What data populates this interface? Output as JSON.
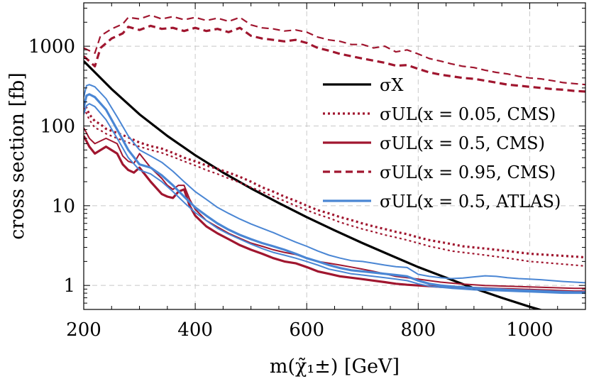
{
  "chart_data": {
    "type": "line",
    "xlabel": "m(χ̃₁±) [GeV]",
    "ylabel": "cross section [fb]",
    "xlim": [
      200,
      1100
    ],
    "ylim": [
      0.5,
      3500
    ],
    "yscale": "log",
    "grid": true,
    "legend_position": "right",
    "x_ticks": [
      200,
      400,
      600,
      800,
      1000
    ],
    "x_tick_labels": [
      "200",
      "400",
      "600",
      "800",
      "1000"
    ],
    "y_ticks": [
      1,
      10,
      100,
      1000
    ],
    "y_tick_labels": [
      "1",
      "10",
      "100",
      "1000"
    ],
    "colors": {
      "sigmaX": "#000000",
      "cms": "#a0162f",
      "atlas": "#4a86d4",
      "grid": "#c8c8c8"
    },
    "legend": [
      {
        "label": "σX",
        "style": "solid",
        "color": "#000000"
      },
      {
        "label": "σUL(x = 0.05, CMS)",
        "style": "dotted",
        "color": "#a0162f"
      },
      {
        "label": "σUL(x = 0.5, CMS)",
        "style": "solid",
        "color": "#a0162f"
      },
      {
        "label": "σUL(x = 0.95, CMS)",
        "style": "dashed",
        "color": "#a0162f"
      },
      {
        "label": "σUL(x = 0.5, ATLAS)",
        "style": "solid",
        "color": "#4a86d4"
      }
    ],
    "series": [
      {
        "name": "σX",
        "style": "solid",
        "color": "#000000",
        "width": 3.2,
        "x": [
          200,
          250,
          300,
          350,
          400,
          450,
          500,
          550,
          600,
          650,
          700,
          750,
          800,
          850,
          900,
          950,
          1000,
          1025
        ],
        "y": [
          650,
          290,
          140,
          75,
          43,
          26,
          16.5,
          10.8,
          7.2,
          4.9,
          3.4,
          2.4,
          1.7,
          1.25,
          0.92,
          0.7,
          0.54,
          0.48
        ]
      },
      {
        "name": "σUL(x = 0.95, CMS) upper",
        "style": "dashed",
        "color": "#a0162f",
        "width": 2.2,
        "x": [
          200,
          210,
          220,
          230,
          250,
          270,
          280,
          300,
          320,
          340,
          360,
          380,
          400,
          420,
          440,
          460,
          480,
          500,
          520,
          540,
          560,
          580,
          600,
          620,
          640,
          660,
          680,
          700,
          720,
          740,
          760,
          780,
          800,
          820,
          840,
          860,
          880,
          900,
          920,
          940,
          960,
          980,
          1000,
          1020,
          1040,
          1060,
          1080,
          1100
        ],
        "y": [
          950,
          880,
          820,
          1350,
          1650,
          1900,
          2300,
          2200,
          2450,
          2200,
          2350,
          2150,
          2300,
          2100,
          2250,
          2050,
          2300,
          1850,
          1700,
          1650,
          1550,
          1600,
          1500,
          1300,
          1200,
          1150,
          1050,
          1050,
          950,
          1000,
          850,
          900,
          800,
          700,
          650,
          600,
          560,
          540,
          500,
          470,
          450,
          420,
          400,
          390,
          370,
          350,
          340,
          330
        ]
      },
      {
        "name": "σUL(x = 0.95, CMS)",
        "style": "dashed",
        "color": "#a0162f",
        "width": 3.2,
        "x": [
          200,
          210,
          220,
          230,
          250,
          270,
          280,
          300,
          320,
          340,
          360,
          380,
          400,
          420,
          440,
          460,
          480,
          500,
          520,
          540,
          560,
          580,
          600,
          620,
          640,
          660,
          680,
          700,
          720,
          740,
          760,
          780,
          800,
          820,
          840,
          860,
          880,
          900,
          920,
          940,
          960,
          980,
          1000,
          1020,
          1040,
          1060,
          1080,
          1100
        ],
        "y": [
          750,
          650,
          560,
          950,
          1250,
          1450,
          1750,
          1600,
          1800,
          1650,
          1700,
          1550,
          1700,
          1550,
          1650,
          1500,
          1700,
          1350,
          1250,
          1200,
          1150,
          1200,
          1100,
          950,
          880,
          800,
          750,
          700,
          660,
          620,
          570,
          580,
          520,
          470,
          440,
          420,
          400,
          390,
          370,
          350,
          330,
          320,
          310,
          300,
          290,
          285,
          275,
          270
        ]
      },
      {
        "name": "σUL(x = 0.05, CMS)",
        "style": "dotted",
        "color": "#a0162f",
        "width": 3.2,
        "x": [
          200,
          210,
          220,
          230,
          240,
          260,
          280,
          300,
          320,
          340,
          360,
          380,
          400,
          420,
          440,
          460,
          480,
          500,
          520,
          540,
          560,
          580,
          600,
          620,
          640,
          660,
          680,
          700,
          720,
          740,
          760,
          780,
          800,
          820,
          840,
          860,
          880,
          900,
          920,
          940,
          960,
          980,
          1000,
          1020,
          1040,
          1060,
          1080,
          1100
        ],
        "y": [
          200,
          140,
          115,
          105,
          92,
          82,
          72,
          62,
          56,
          52,
          46,
          40,
          36,
          32,
          29,
          26,
          23,
          20,
          17,
          15,
          13,
          11.5,
          10,
          8.8,
          8,
          7.2,
          6.6,
          6,
          5.5,
          5.1,
          4.7,
          4.4,
          4,
          3.7,
          3.5,
          3.3,
          3.1,
          3,
          2.9,
          2.8,
          2.7,
          2.6,
          2.5,
          2.45,
          2.4,
          2.35,
          2.3,
          2.25
        ]
      },
      {
        "name": "σUL(x = 0.05, CMS) lower",
        "style": "dotted",
        "color": "#a0162f",
        "width": 2.2,
        "x": [
          200,
          210,
          220,
          230,
          240,
          260,
          280,
          300,
          320,
          340,
          360,
          380,
          400,
          420,
          440,
          460,
          480,
          500,
          520,
          540,
          560,
          580,
          600,
          620,
          640,
          660,
          680,
          700,
          720,
          740,
          760,
          780,
          800,
          820,
          840,
          860,
          880,
          900,
          920,
          940,
          960,
          980,
          1000,
          1020,
          1040,
          1060,
          1080,
          1100
        ],
        "y": [
          170,
          120,
          95,
          88,
          80,
          70,
          62,
          55,
          50,
          46,
          41,
          36,
          32,
          28,
          25,
          22,
          19.5,
          17,
          15,
          13,
          11.5,
          10,
          8.8,
          7.8,
          7,
          6.2,
          5.6,
          5.1,
          4.7,
          4.3,
          4,
          3.7,
          3.4,
          3.1,
          2.9,
          2.7,
          2.6,
          2.5,
          2.4,
          2.3,
          2.2,
          2.1,
          2,
          1.95,
          1.9,
          1.85,
          1.8,
          1.75
        ]
      },
      {
        "name": "σUL(x = 0.5, CMS)",
        "style": "solid",
        "color": "#a0162f",
        "width": 3.2,
        "x": [
          200,
          210,
          220,
          240,
          260,
          270,
          280,
          290,
          300,
          320,
          340,
          350,
          360,
          370,
          380,
          390,
          400,
          420,
          440,
          460,
          480,
          500,
          520,
          540,
          560,
          580,
          600,
          620,
          640,
          660,
          680,
          700,
          720,
          740,
          760,
          780,
          800,
          820,
          840,
          860,
          880,
          900,
          920,
          940,
          960,
          980,
          1000,
          1020,
          1040,
          1060,
          1080,
          1100
        ],
        "y": [
          75,
          55,
          45,
          55,
          45,
          33,
          28,
          26,
          30,
          20,
          14,
          13,
          12.5,
          15,
          16,
          10,
          7.5,
          5.5,
          4.5,
          3.8,
          3.2,
          2.8,
          2.5,
          2.2,
          2,
          1.9,
          1.7,
          1.5,
          1.4,
          1.3,
          1.25,
          1.2,
          1.15,
          1.1,
          1.05,
          1.02,
          1.0,
          0.98,
          0.96,
          0.95,
          0.94,
          0.93,
          0.92,
          0.91,
          0.9,
          0.89,
          0.88,
          0.87,
          0.86,
          0.85,
          0.84,
          0.84
        ]
      },
      {
        "name": "σUL(x = 0.5, CMS) upper",
        "style": "solid",
        "color": "#a0162f",
        "width": 2.0,
        "x": [
          200,
          210,
          220,
          240,
          260,
          270,
          280,
          290,
          300,
          320,
          340,
          350,
          360,
          370,
          380,
          390,
          400,
          420,
          440,
          460,
          480,
          500,
          520,
          540,
          560,
          580,
          600,
          620,
          640,
          660,
          680,
          700,
          720,
          740,
          760,
          780,
          800,
          820,
          840,
          860,
          880,
          900,
          920,
          940,
          960,
          980,
          1000,
          1020,
          1040,
          1060,
          1080,
          1100
        ],
        "y": [
          95,
          70,
          60,
          70,
          60,
          42,
          36,
          34,
          45,
          30,
          22,
          18,
          16,
          18,
          18,
          12,
          9,
          6.5,
          5.4,
          4.5,
          3.9,
          3.4,
          3.1,
          2.8,
          2.6,
          2.45,
          2.2,
          2,
          1.9,
          1.8,
          1.7,
          1.6,
          1.5,
          1.4,
          1.3,
          1.25,
          1.2,
          1.15,
          1.1,
          1.07,
          1.04,
          1.02,
          1.0,
          0.99,
          0.98,
          0.97,
          0.96,
          0.95,
          0.94,
          0.93,
          0.92,
          0.92
        ]
      },
      {
        "name": "σUL(x = 0.5, ATLAS)",
        "style": "solid",
        "color": "#4a86d4",
        "width": 3.2,
        "x": [
          200,
          205,
          210,
          220,
          240,
          260,
          280,
          300,
          320,
          340,
          360,
          380,
          400,
          420,
          440,
          460,
          480,
          500,
          520,
          540,
          560,
          580,
          600,
          620,
          640,
          660,
          680,
          700,
          720,
          740,
          760,
          780,
          800,
          820,
          840,
          860,
          880,
          900,
          920,
          940,
          960,
          980,
          1000,
          1020,
          1040,
          1060,
          1080,
          1100
        ],
        "y": [
          170,
          240,
          250,
          230,
          160,
          90,
          50,
          33,
          30,
          24,
          18,
          13,
          9.5,
          7.5,
          6,
          5,
          4.3,
          3.8,
          3.4,
          3.1,
          2.8,
          2.5,
          2.2,
          2,
          1.8,
          1.65,
          1.55,
          1.5,
          1.45,
          1.4,
          1.35,
          1.3,
          1.15,
          1.05,
          1.0,
          0.97,
          0.95,
          0.93,
          0.91,
          0.9,
          0.88,
          0.87,
          0.86,
          0.85,
          0.84,
          0.83,
          0.82,
          0.82
        ]
      },
      {
        "name": "σUL(x = 0.5, ATLAS) upper",
        "style": "solid",
        "color": "#4a86d4",
        "width": 2.0,
        "x": [
          200,
          205,
          210,
          220,
          240,
          260,
          280,
          300,
          320,
          340,
          360,
          380,
          400,
          420,
          440,
          460,
          480,
          500,
          520,
          540,
          560,
          580,
          600,
          620,
          640,
          660,
          680,
          700,
          720,
          740,
          760,
          780,
          800,
          820,
          840,
          860,
          880,
          900,
          920,
          940,
          960,
          980,
          1000,
          1020,
          1040,
          1060,
          1080,
          1100
        ],
        "y": [
          230,
          320,
          330,
          310,
          220,
          130,
          75,
          50,
          42,
          35,
          27,
          20,
          15,
          12,
          9.5,
          8,
          6.8,
          5.9,
          5.2,
          4.6,
          4,
          3.5,
          3.1,
          2.7,
          2.4,
          2.2,
          2.05,
          2,
          1.9,
          1.8,
          1.72,
          1.68,
          1.38,
          1.3,
          1.25,
          1.22,
          1.24,
          1.28,
          1.32,
          1.3,
          1.25,
          1.22,
          1.2,
          1.18,
          1.15,
          1.12,
          1.1,
          1.08
        ]
      },
      {
        "name": "σUL(x = 0.5, ATLAS) lower",
        "style": "solid",
        "color": "#4a86d4",
        "width": 2.0,
        "x": [
          200,
          205,
          210,
          220,
          240,
          260,
          280,
          300,
          320,
          340,
          360,
          380,
          400,
          420,
          440,
          460,
          480,
          500,
          520,
          540,
          560,
          580,
          600,
          620,
          640,
          660,
          680,
          700,
          720,
          740,
          760,
          780,
          800,
          820,
          840,
          860,
          880,
          900,
          920,
          940,
          960,
          980,
          1000,
          1020,
          1040,
          1060,
          1080,
          1100
        ],
        "y": [
          140,
          180,
          190,
          175,
          120,
          70,
          40,
          28,
          25,
          20,
          15,
          11,
          8.2,
          6.5,
          5.2,
          4.4,
          3.8,
          3.3,
          2.9,
          2.6,
          2.4,
          2.2,
          2,
          1.8,
          1.6,
          1.5,
          1.4,
          1.35,
          1.3,
          1.25,
          1.2,
          1.15,
          1.05,
          0.98,
          0.95,
          0.92,
          0.9,
          0.88,
          0.87,
          0.86,
          0.85,
          0.84,
          0.83,
          0.82,
          0.81,
          0.8,
          0.8,
          0.8
        ]
      }
    ]
  }
}
